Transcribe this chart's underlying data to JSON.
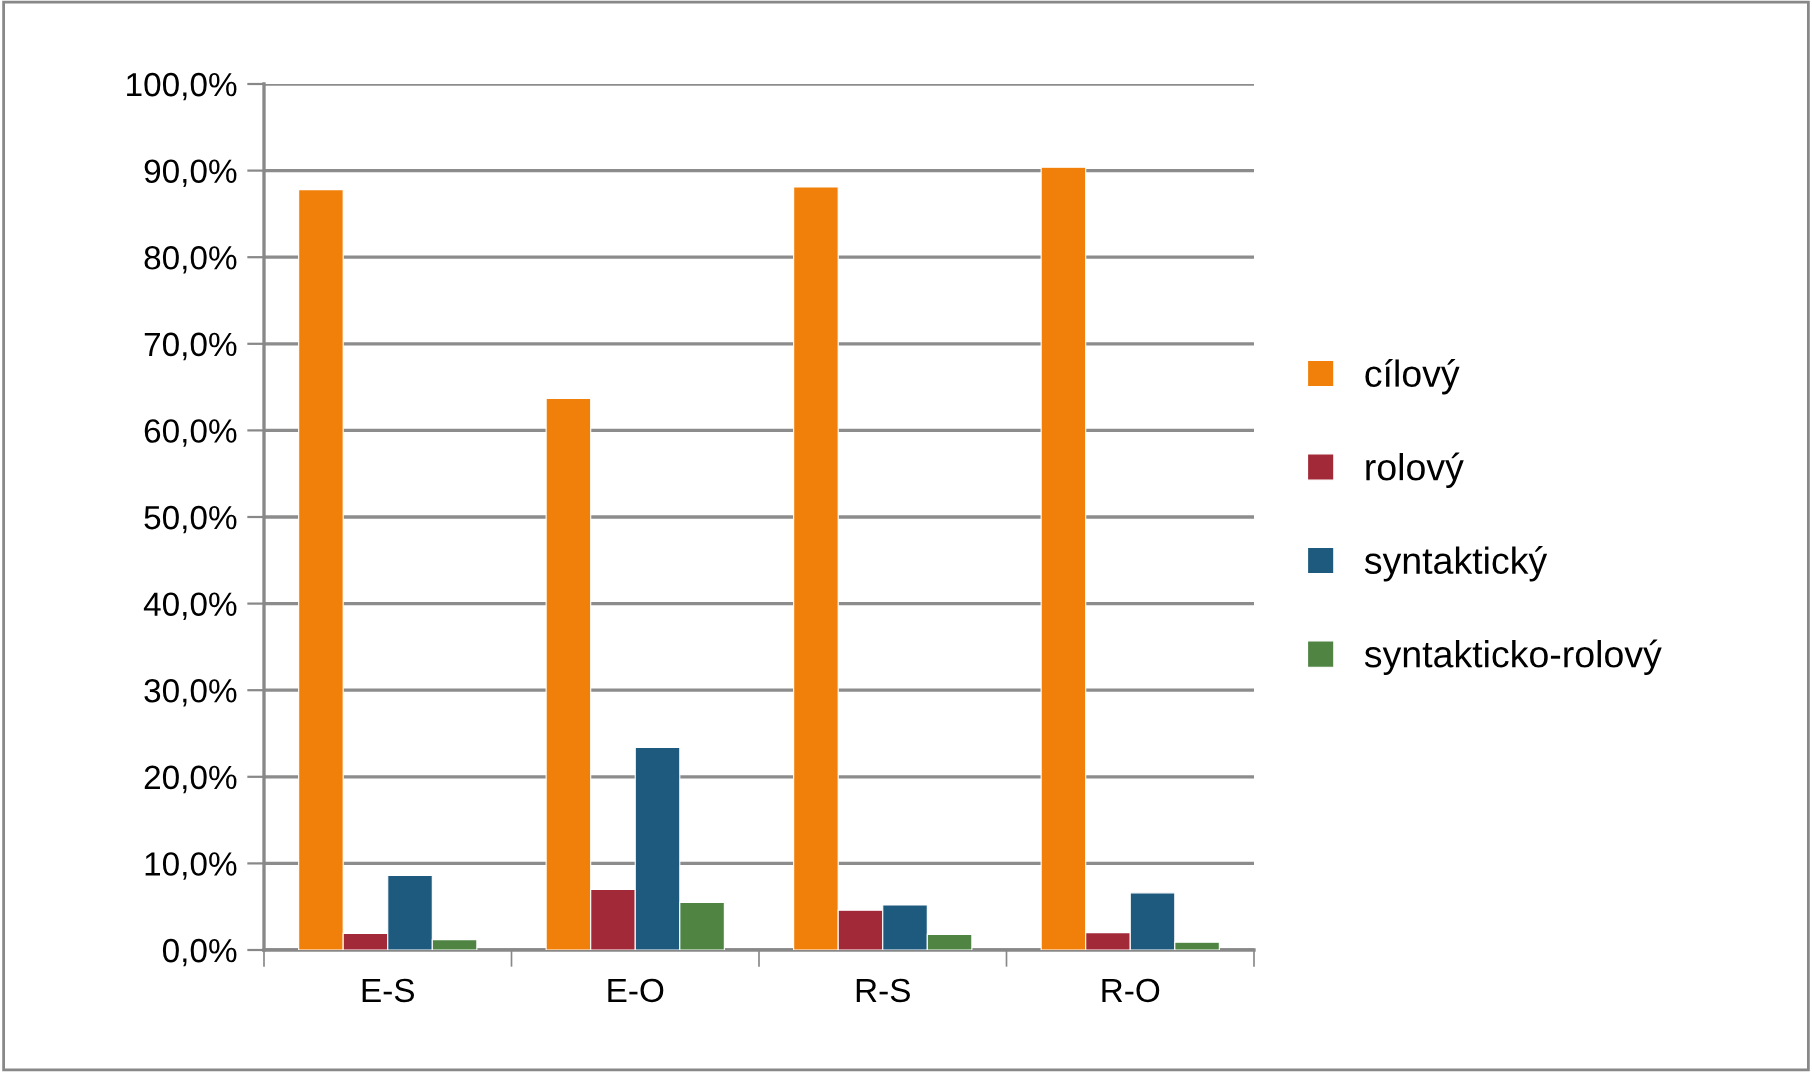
{
  "chart_data": {
    "type": "bar",
    "categories": [
      "E-S",
      "E-O",
      "R-S",
      "R-O"
    ],
    "series": [
      {
        "name": "cílový",
        "color": "#f0800a",
        "values": [
          87.8,
          63.7,
          88.1,
          90.4
        ]
      },
      {
        "name": "rolový",
        "color": "#a22a38",
        "values": [
          1.9,
          7.0,
          4.6,
          2.0
        ]
      },
      {
        "name": "syntaktický",
        "color": "#1e5a7e",
        "values": [
          8.6,
          23.4,
          5.2,
          6.6
        ]
      },
      {
        "name": "syntakticko-rolový",
        "color": "#4f8443",
        "values": [
          1.2,
          5.5,
          1.8,
          0.9
        ]
      }
    ],
    "ylim": [
      0,
      100
    ],
    "yticks": [
      {
        "value": 0,
        "label": "0,0%"
      },
      {
        "value": 10,
        "label": "10,0%"
      },
      {
        "value": 20,
        "label": "20,0%"
      },
      {
        "value": 30,
        "label": "30,0%"
      },
      {
        "value": 40,
        "label": "40,0%"
      },
      {
        "value": 50,
        "label": "50,0%"
      },
      {
        "value": 60,
        "label": "60,0%"
      },
      {
        "value": 70,
        "label": "70,0%"
      },
      {
        "value": 80,
        "label": "80,0%"
      },
      {
        "value": 90,
        "label": "90,0%"
      },
      {
        "value": 100,
        "label": "100,0%"
      }
    ],
    "grid": "y",
    "legend": "right"
  }
}
